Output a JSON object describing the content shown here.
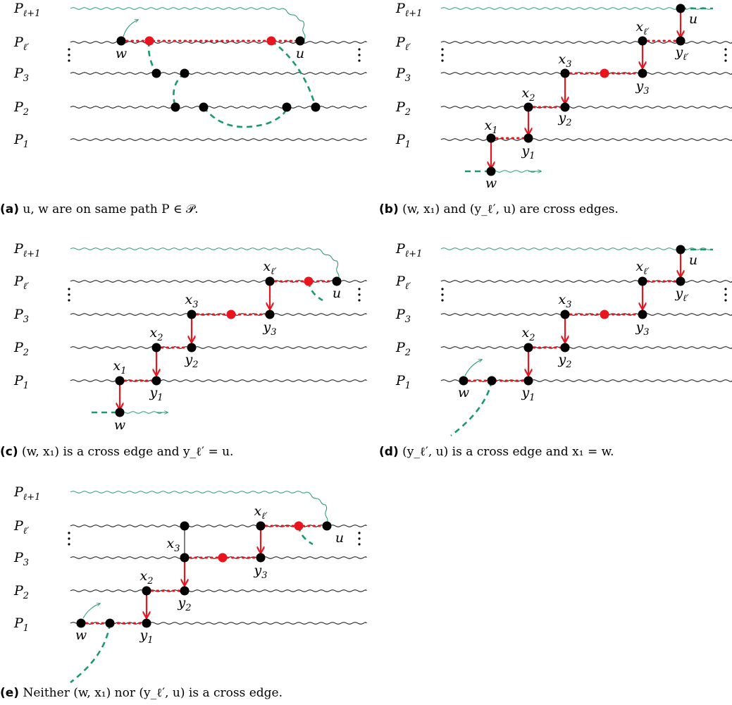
{
  "colors": {
    "path": "#000000",
    "green": "#1a9a6a",
    "red": "#e8141e",
    "node": "#000000"
  },
  "panels": [
    {
      "id": "a",
      "caption_tag": "(a)",
      "caption_text": "u, w are on same path P ∈ 𝒫.",
      "row_labels": [
        {
          "base": "P",
          "sub": "ℓ+1"
        },
        {
          "base": "P",
          "sub": "ℓ′"
        },
        {
          "base": "P",
          "sub": "3"
        },
        {
          "base": "P",
          "sub": "2"
        },
        {
          "base": "P",
          "sub": "1"
        }
      ],
      "node_labels": [
        "w",
        "u"
      ]
    },
    {
      "id": "b",
      "caption_tag": "(b)",
      "caption_text": "(w, x₁) and (y_ℓ′, u) are cross edges.",
      "row_labels": [
        {
          "base": "P",
          "sub": "ℓ+1"
        },
        {
          "base": "P",
          "sub": "ℓ′"
        },
        {
          "base": "P",
          "sub": "3"
        },
        {
          "base": "P",
          "sub": "2"
        },
        {
          "base": "P",
          "sub": "1"
        }
      ],
      "node_labels": [
        "u",
        "x_ℓ′",
        "y_ℓ′",
        "x3",
        "y3",
        "x2",
        "y2",
        "x1",
        "y1",
        "w"
      ]
    },
    {
      "id": "c",
      "caption_tag": "(c)",
      "caption_text": "(w, x₁) is a cross edge and y_ℓ′ = u.",
      "row_labels": [
        {
          "base": "P",
          "sub": "ℓ+1"
        },
        {
          "base": "P",
          "sub": "ℓ′"
        },
        {
          "base": "P",
          "sub": "3"
        },
        {
          "base": "P",
          "sub": "2"
        },
        {
          "base": "P",
          "sub": "1"
        }
      ],
      "node_labels": [
        "x_ℓ′",
        "u",
        "x3",
        "y3",
        "x2",
        "y2",
        "x1",
        "y1",
        "w"
      ]
    },
    {
      "id": "d",
      "caption_tag": "(d)",
      "caption_text": "(y_ℓ′, u) is a cross edge and x₁ = w.",
      "row_labels": [
        {
          "base": "P",
          "sub": "ℓ+1"
        },
        {
          "base": "P",
          "sub": "ℓ′"
        },
        {
          "base": "P",
          "sub": "3"
        },
        {
          "base": "P",
          "sub": "2"
        },
        {
          "base": "P",
          "sub": "1"
        }
      ],
      "node_labels": [
        "u",
        "x_ℓ′",
        "y_ℓ′",
        "x3",
        "y3",
        "x2",
        "y2",
        "w",
        "y1"
      ]
    },
    {
      "id": "e",
      "caption_tag": "(e)",
      "caption_text": "Neither (w, x₁) nor (y_ℓ′, u) is a cross edge.",
      "row_labels": [
        {
          "base": "P",
          "sub": "ℓ+1"
        },
        {
          "base": "P",
          "sub": "ℓ′"
        },
        {
          "base": "P",
          "sub": "3"
        },
        {
          "base": "P",
          "sub": "2"
        },
        {
          "base": "P",
          "sub": "1"
        }
      ],
      "node_labels": [
        "x_ℓ′",
        "u",
        "x3",
        "y3",
        "x2",
        "y2",
        "w",
        "y1"
      ]
    }
  ]
}
